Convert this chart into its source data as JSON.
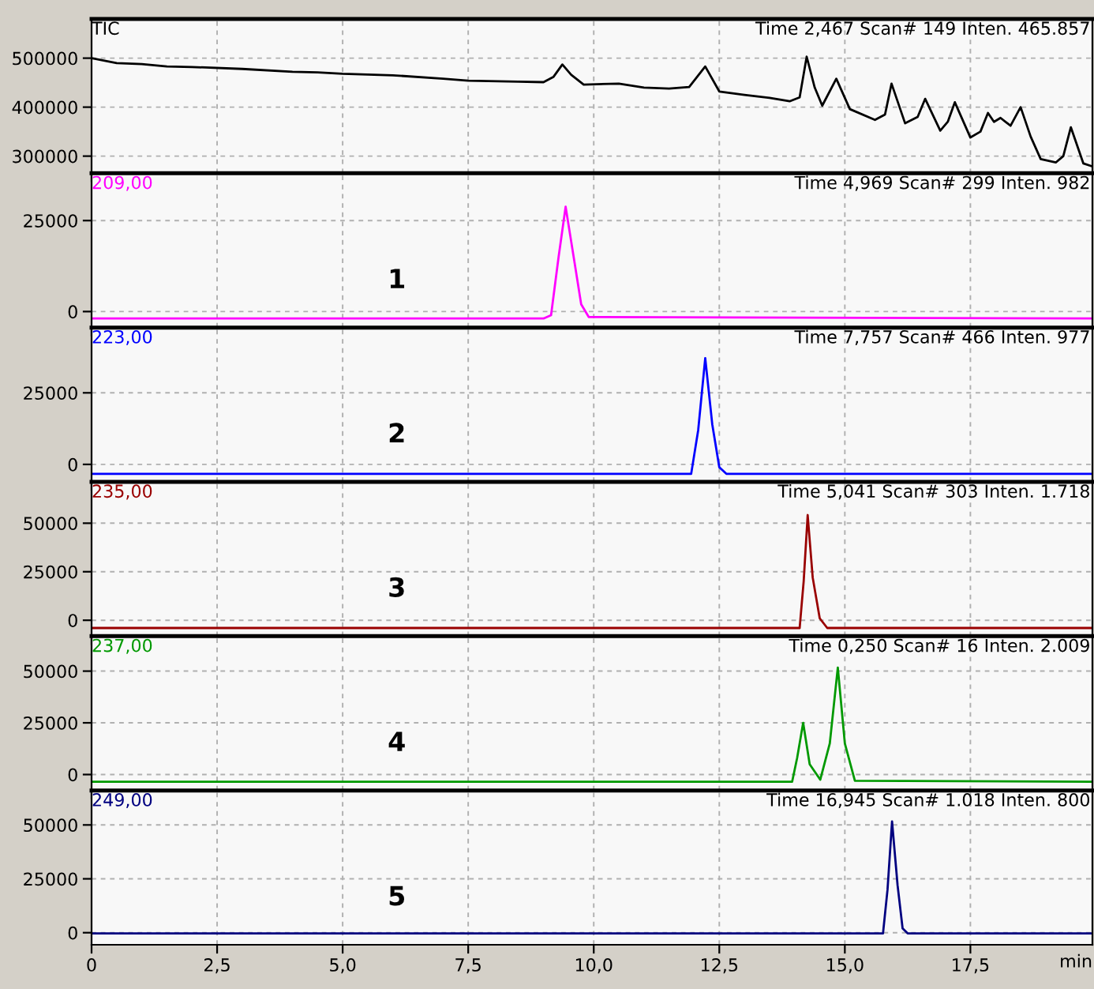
{
  "chart_data": [
    {
      "type": "line",
      "series": [
        {
          "name": "TIC",
          "color": "#000000",
          "x": [
            0,
            0.5,
            1.0,
            1.5,
            2.0,
            3.0,
            4.0,
            4.5,
            5.0,
            6.0,
            7.0,
            7.5,
            8.5,
            9.0,
            9.2,
            9.375,
            9.55,
            9.8,
            10.5,
            11.0,
            11.5,
            11.9,
            12.22,
            12.5,
            13.0,
            13.5,
            13.9,
            14.1,
            14.24,
            14.4,
            14.55,
            14.83,
            15.1,
            15.6,
            15.8,
            15.93,
            16.2,
            16.45,
            16.6,
            16.9,
            17.05,
            17.19,
            17.5,
            17.7,
            17.85,
            17.97,
            18.1,
            18.3,
            18.5,
            18.7,
            18.9,
            19.2,
            19.35,
            19.5,
            19.75,
            19.9
          ],
          "values": [
            500000,
            490000,
            488000,
            483000,
            482000,
            478000,
            472000,
            471000,
            468000,
            465000,
            458000,
            454000,
            452000,
            451000,
            462000,
            487000,
            466000,
            446000,
            448000,
            440000,
            438000,
            441000,
            483000,
            432000,
            425000,
            419000,
            412000,
            420000,
            503000,
            440000,
            403000,
            458000,
            396000,
            374000,
            385000,
            448000,
            367000,
            380000,
            417000,
            352000,
            370000,
            410000,
            338000,
            350000,
            388000,
            370000,
            378000,
            362000,
            400000,
            340000,
            294000,
            287000,
            300000,
            359000,
            285000,
            280000
          ]
        }
      ],
      "annotations": [
        "Time 2,467 Scan# 149 Inten. 465.857"
      ],
      "xlim": [
        0,
        19.93
      ],
      "xticks": [
        0,
        2.5,
        5,
        7.5,
        10,
        12.5,
        15,
        17.5
      ],
      "ylim": [
        265000,
        580000
      ],
      "yticks": [
        300000,
        400000,
        500000
      ],
      "grid": true,
      "tick_labels": "y"
    },
    {
      "type": "line",
      "series": [
        {
          "name": "209,00",
          "color": "#ff00ff",
          "x": [
            0,
            9.0,
            9.15,
            9.3,
            9.44,
            9.6,
            9.75,
            9.9,
            19.93
          ],
          "values": [
            -1900,
            -1900,
            -1000,
            15000,
            28800,
            15000,
            2000,
            -1500,
            -1900
          ]
        }
      ],
      "annotations": [
        "Time 4,969 Scan# 299 Inten. 982",
        "1"
      ],
      "xlim": [
        0,
        19.93
      ],
      "xticks": [
        0,
        2.5,
        5,
        7.5,
        10,
        12.5,
        15,
        17.5
      ],
      "ylim": [
        -4400,
        38000
      ],
      "yticks": [
        0,
        25000
      ],
      "grid": true,
      "tick_labels": "y"
    },
    {
      "type": "line",
      "series": [
        {
          "name": "223,00",
          "color": "#0000ff",
          "x": [
            0,
            11.94,
            12.08,
            12.22,
            12.36,
            12.5,
            12.64,
            19.93
          ],
          "values": [
            -3300,
            -3300,
            12000,
            37100,
            14000,
            -1000,
            -3300,
            -3300
          ]
        }
      ],
      "annotations": [
        "Time 7,757 Scan# 466 Inten. 977",
        "2"
      ],
      "xlim": [
        0,
        19.93
      ],
      "xticks": [
        0,
        2.5,
        5,
        7.5,
        10,
        12.5,
        15,
        17.5
      ],
      "ylim": [
        -6100,
        47800
      ],
      "yticks": [
        0,
        25000
      ],
      "grid": true,
      "tick_labels": "y"
    },
    {
      "type": "line",
      "series": [
        {
          "name": "235,00",
          "color": "#990000",
          "x": [
            0,
            14.1,
            14.18,
            14.26,
            14.36,
            14.5,
            14.65,
            19.93
          ],
          "values": [
            -4000,
            -4000,
            20000,
            54200,
            22000,
            1000,
            -4000,
            -4000
          ]
        }
      ],
      "annotations": [
        "Time 5,041 Scan# 303 Inten. 1.718",
        "3"
      ],
      "xlim": [
        0,
        19.93
      ],
      "xticks": [
        0,
        2.5,
        5,
        7.5,
        10,
        12.5,
        15,
        17.5
      ],
      "ylim": [
        -8200,
        71300
      ],
      "yticks": [
        0,
        25000,
        50000
      ],
      "grid": true,
      "tick_labels": "y"
    },
    {
      "type": "line",
      "series": [
        {
          "name": "237,00",
          "color": "#009900",
          "x": [
            0,
            13.95,
            14.05,
            14.17,
            14.3,
            14.51,
            14.7,
            14.86,
            15.0,
            15.2,
            19.93
          ],
          "values": [
            -3500,
            -3500,
            8000,
            25000,
            5000,
            -2500,
            15000,
            51700,
            15000,
            -3000,
            -3500
          ]
        }
      ],
      "annotations": [
        "Time 0,250 Scan# 16 Inten. 2.009",
        "4"
      ],
      "xlim": [
        0,
        19.93
      ],
      "xticks": [
        0,
        2.5,
        5,
        7.5,
        10,
        12.5,
        15,
        17.5
      ],
      "ylim": [
        -7700,
        66900
      ],
      "yticks": [
        0,
        25000,
        50000
      ],
      "grid": true,
      "tick_labels": "y"
    },
    {
      "type": "line",
      "series": [
        {
          "name": "249,00",
          "color": "#000080",
          "x": [
            0,
            15.76,
            15.85,
            15.94,
            16.05,
            16.15,
            16.25,
            19.93
          ],
          "values": [
            -300,
            -300,
            20000,
            51600,
            22000,
            2000,
            -300,
            -300
          ]
        }
      ],
      "annotations": [
        "Time 16,945 Scan# 1.018 Inten. 800",
        "5"
      ],
      "xlabel": "min",
      "xlim": [
        0,
        19.93
      ],
      "xticks": [
        0,
        {
          "value": 2.5,
          "label": "2,5"
        },
        {
          "value": 5,
          "label": "5,0"
        },
        {
          "value": 7.5,
          "label": "7,5"
        },
        {
          "value": 10,
          "label": "10,0"
        },
        {
          "value": 12.5,
          "label": "12,5"
        },
        {
          "value": 15,
          "label": "15,0"
        },
        {
          "value": 17.5,
          "label": "17,5"
        }
      ],
      "ylim": [
        -5600,
        66000
      ],
      "yticks": [
        0,
        25000,
        50000
      ],
      "grid": true
    }
  ]
}
